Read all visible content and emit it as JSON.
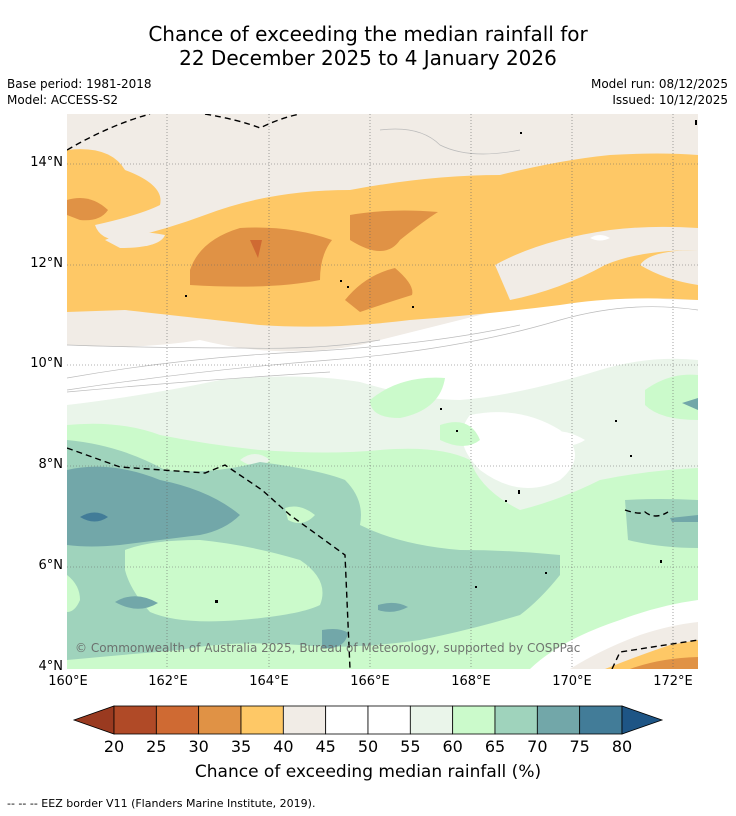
{
  "title": {
    "line1": "Chance of exceeding the median rainfall for",
    "line2": "22 December 2025 to 4 January 2026"
  },
  "meta": {
    "base_period": "Base period: 1981-2018",
    "model": "Model: ACCESS-S2",
    "model_run": "Model run: 08/12/2025",
    "issued": "Issued: 10/12/2025"
  },
  "axes": {
    "lat_labels": [
      "14°N",
      "12°N",
      "10°N",
      "8°N",
      "6°N",
      "4°N"
    ],
    "lon_labels": [
      "160°E",
      "162°E",
      "164°E",
      "166°E",
      "168°E",
      "170°E",
      "172°E"
    ]
  },
  "colorbar": {
    "label": "Chance of exceeding median rainfall (%)",
    "ticks": [
      "20",
      "25",
      "30",
      "35",
      "40",
      "45",
      "50",
      "55",
      "60",
      "65",
      "70",
      "75",
      "80"
    ],
    "colors": {
      "below20": "#9a3a20",
      "20-25": "#b04a27",
      "25-30": "#cf6a33",
      "30-35": "#e09245",
      "35-40": "#fec866",
      "40-45": "#f1ece6",
      "45-50": "#ffffff",
      "50-55": "#ffffff",
      "55-60": "#eaf5ea",
      "60-65": "#cbfacb",
      "65-70": "#9fd3bc",
      "70-75": "#72a7a9",
      "75-80": "#427c98",
      "above80": "#1e5585"
    }
  },
  "copyright": "© Commonwealth of Australia 2025, Bureau of Meteorology, supported by COSPPac",
  "footer": "-- -- -- EEZ border V11 (Flanders Marine Institute, 2019)."
}
